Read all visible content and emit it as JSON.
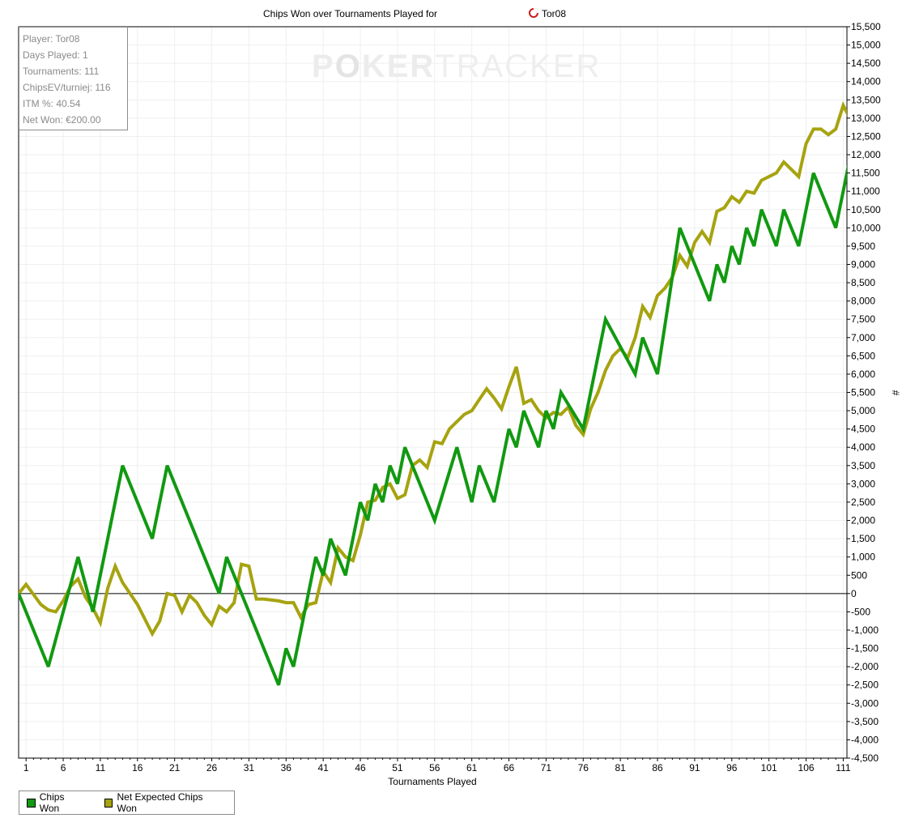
{
  "chart_data": {
    "type": "line",
    "title": "Chips Won over Tournaments Played for",
    "player_name": "Tor08",
    "title_icon": "red-white-ring-icon",
    "xlabel": "Tournaments Played",
    "ylabel": "#",
    "xlim": [
      0,
      111.5
    ],
    "ylim": [
      -4500,
      15500
    ],
    "x_ticks": [
      1,
      6,
      11,
      16,
      21,
      26,
      31,
      36,
      41,
      46,
      51,
      56,
      61,
      66,
      71,
      76,
      81,
      86,
      91,
      96,
      101,
      106,
      111
    ],
    "y_ticks": [
      -4500,
      -4000,
      -3500,
      -3000,
      -2500,
      -2000,
      -1500,
      -1000,
      -500,
      0,
      500,
      1000,
      1500,
      2000,
      2500,
      3000,
      3500,
      4000,
      4500,
      5000,
      5500,
      6000,
      6500,
      7000,
      7500,
      8000,
      8500,
      9000,
      9500,
      10000,
      10500,
      11000,
      11500,
      12000,
      12500,
      13000,
      13500,
      14000,
      14500,
      15000,
      15500
    ],
    "grid": true,
    "legend_position": "bottom-left",
    "series": [
      {
        "name": "Chips Won",
        "color": "#119911",
        "x": [
          0,
          4,
          8,
          10,
          14,
          18,
          20,
          27,
          28,
          35,
          36,
          37,
          40,
          41,
          42,
          44,
          46,
          47,
          48,
          49,
          50,
          51,
          52,
          53,
          56,
          59,
          61,
          62,
          64,
          66,
          67,
          68,
          70,
          71,
          72,
          73,
          76,
          79,
          83,
          84,
          86,
          89,
          93,
          94,
          95,
          96,
          97,
          98,
          99,
          100,
          102,
          103,
          105,
          107,
          110,
          112
        ],
        "values": [
          0,
          -2000,
          1000,
          -500,
          3500,
          1500,
          3500,
          0,
          1000,
          -2500,
          -1500,
          -2000,
          1000,
          500,
          1500,
          500,
          2500,
          2000,
          3000,
          2500,
          3500,
          3000,
          4000,
          3500,
          2000,
          4000,
          2500,
          3500,
          2500,
          4500,
          4000,
          5000,
          4000,
          5000,
          4500,
          5500,
          4500,
          7500,
          6000,
          7000,
          6000,
          10000,
          8000,
          9000,
          8500,
          9500,
          9000,
          10000,
          9500,
          10500,
          9500,
          10500,
          9500,
          11500,
          10000,
          12000
        ]
      },
      {
        "name": "Net Expected Chips Won",
        "color": "#a6a310",
        "x": [
          0,
          1,
          3,
          4,
          5,
          6,
          7,
          8,
          9,
          10,
          11,
          12,
          13,
          14,
          16,
          18,
          19,
          20,
          21,
          22,
          23,
          24,
          25,
          26,
          27,
          28,
          29,
          30,
          31,
          32,
          33,
          35,
          36,
          37,
          38,
          39,
          40,
          41,
          42,
          43,
          44,
          45,
          46,
          47,
          48,
          49,
          50,
          51,
          52,
          53,
          54,
          55,
          56,
          57,
          58,
          59,
          60,
          61,
          62,
          63,
          64,
          65,
          66,
          67,
          68,
          69,
          70,
          71,
          72,
          73,
          74,
          75,
          76,
          77,
          78,
          79,
          80,
          81,
          82,
          83,
          84,
          85,
          86,
          87,
          88,
          89,
          90,
          91,
          92,
          93,
          94,
          95,
          96,
          97,
          98,
          99,
          100,
          101,
          102,
          103,
          104,
          105,
          106,
          107,
          108,
          109,
          110,
          111,
          112
        ],
        "values": [
          0,
          250,
          -300,
          -450,
          -500,
          -200,
          200,
          400,
          -100,
          -400,
          -800,
          150,
          750,
          300,
          -300,
          -1100,
          -750,
          0,
          -50,
          -500,
          -50,
          -250,
          -600,
          -850,
          -350,
          -500,
          -250,
          800,
          750,
          -150,
          -150,
          -200,
          -250,
          -250,
          -650,
          -300,
          -250,
          600,
          300,
          1250,
          1000,
          900,
          1600,
          2500,
          2550,
          2900,
          3000,
          2600,
          2700,
          3500,
          3650,
          3450,
          4150,
          4100,
          4500,
          4700,
          4900,
          5000,
          5300,
          5600,
          5350,
          5050,
          5650,
          6200,
          5200,
          5300,
          5000,
          4800,
          4950,
          4900,
          5100,
          4600,
          4350,
          5050,
          5500,
          6100,
          6500,
          6700,
          6450,
          7000,
          7850,
          7550,
          8150,
          8350,
          8650,
          9250,
          8950,
          9600,
          9900,
          9600,
          10450,
          10550,
          10850,
          10700,
          11000,
          10950,
          11300,
          11400,
          11500,
          11800,
          11600,
          11400,
          12300,
          12700,
          12700,
          12550,
          12700,
          13350,
          12950
        ]
      }
    ]
  },
  "info_box": {
    "player": "Player: Tor08",
    "days_played": "Days Played: 1",
    "tournaments": "Tournaments: 111",
    "chips_ev": "ChipsEV/turniej: 116",
    "itm": "ITM %: 40.54",
    "net_won": "Net Won: €200.00"
  },
  "watermark": {
    "left": "P",
    "o": "O",
    "mid": "KER",
    "right": "TRACKER"
  }
}
